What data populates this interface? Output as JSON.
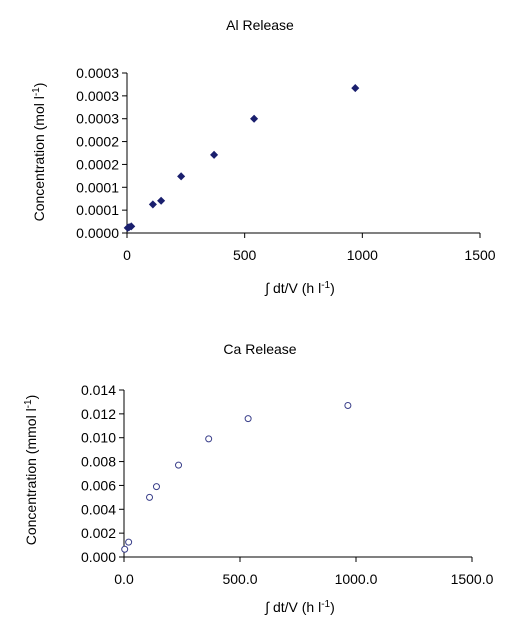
{
  "chart_data": [
    {
      "type": "scatter",
      "title": "Al Release",
      "xlabel": "∫ dt/V (h l",
      "xlabel_sup": "-1",
      "xlabel_end": ")",
      "ylabel": "Concentration (mol l",
      "ylabel_sup": "-1",
      "ylabel_end": ")",
      "xlim": [
        0,
        1500
      ],
      "ylim": [
        0,
        0.00035
      ],
      "xticks": [
        0,
        500,
        1000,
        1500
      ],
      "xtick_labels": [
        "0",
        "500",
        "1000",
        "1500"
      ],
      "yticks": [
        0,
        5e-05,
        0.0001,
        0.00015,
        0.0002,
        0.00025,
        0.0003,
        0.00035
      ],
      "ytick_labels": [
        "0.0000",
        "0.0001",
        "0.0001",
        "0.0002",
        "0.0002",
        "0.0003",
        "0.0003",
        "0.0003"
      ],
      "marker": "diamond-filled",
      "color": "#1a1f6e",
      "points": [
        {
          "x": 3,
          "y": 1.12e-05
        },
        {
          "x": 9,
          "y": 1.28e-05
        },
        {
          "x": 18,
          "y": 1.45e-05
        },
        {
          "x": 110,
          "y": 6.25e-05
        },
        {
          "x": 145,
          "y": 7.05e-05
        },
        {
          "x": 230,
          "y": 0.000124
        },
        {
          "x": 370,
          "y": 0.000171
        },
        {
          "x": 540,
          "y": 0.00025
        },
        {
          "x": 970,
          "y": 0.000317
        }
      ]
    },
    {
      "type": "scatter",
      "title": "Ca Release",
      "xlabel": "∫ dt/V (h l",
      "xlabel_sup": "-1",
      "xlabel_end": ")",
      "ylabel": "Concentration (mmol l",
      "ylabel_sup": "-1",
      "ylabel_end": ")",
      "xlim": [
        0,
        1500
      ],
      "ylim": [
        0,
        0.014
      ],
      "xticks": [
        0,
        500,
        1000,
        1500
      ],
      "xtick_labels": [
        "0.0",
        "500.0",
        "1000.0",
        "1500.0"
      ],
      "yticks": [
        0,
        0.002,
        0.004,
        0.006,
        0.008,
        0.01,
        0.012,
        0.014
      ],
      "ytick_labels": [
        "0.000",
        "0.002",
        "0.004",
        "0.006",
        "0.008",
        "0.010",
        "0.012",
        "0.014"
      ],
      "marker": "circle-open",
      "color": "#3a3f8a",
      "points": [
        {
          "x": 3,
          "y": 0.00065
        },
        {
          "x": 20,
          "y": 0.00125
        },
        {
          "x": 110,
          "y": 0.005
        },
        {
          "x": 140,
          "y": 0.0059
        },
        {
          "x": 235,
          "y": 0.0077
        },
        {
          "x": 365,
          "y": 0.0099
        },
        {
          "x": 535,
          "y": 0.0116
        },
        {
          "x": 965,
          "y": 0.0127
        }
      ]
    }
  ]
}
